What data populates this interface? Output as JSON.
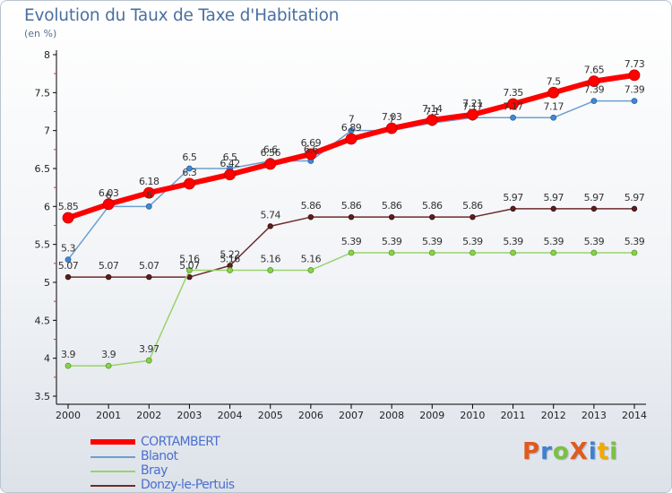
{
  "header": {
    "title": "Evolution du Taux de Taxe d'Habitation",
    "subtitle": "(en %)"
  },
  "logo": {
    "text": "ProXiti",
    "colors": [
      "#e05a1f",
      "#3f7fd0",
      "#7ac143",
      "#e05a1f",
      "#3f7fd0",
      "#f2a900",
      "#7ac143"
    ]
  },
  "chart_data": {
    "type": "line",
    "x": [
      "2000",
      "2001",
      "2002",
      "2003",
      "2004",
      "2005",
      "2006",
      "2007",
      "2008",
      "2009",
      "2010",
      "2011",
      "2012",
      "2013",
      "2014"
    ],
    "ylim": [
      3.5,
      8
    ],
    "yticks": [
      "3.5",
      "4",
      "4.5",
      "5",
      "5.5",
      "6",
      "6.5",
      "7",
      "7.5",
      "8"
    ],
    "grid": false,
    "legend_position": "bottom-left",
    "series": [
      {
        "name": "CORTAMBERT",
        "color": "#ff0000",
        "values": [
          5.85,
          6.03,
          6.18,
          6.3,
          6.42,
          6.56,
          6.69,
          6.89,
          7.03,
          7.14,
          7.21,
          7.35,
          7.5,
          7.65,
          7.73
        ],
        "labels": [
          "5.85",
          "6.03",
          "6.18",
          "6.3",
          "6.42",
          "6.56",
          "6.69",
          "6.89",
          "7.03",
          "7.14",
          "7.21",
          "7.35",
          "7.5",
          "7.65",
          "7.73"
        ]
      },
      {
        "name": "Blanot",
        "color": "#6c9fd0",
        "values": [
          5.3,
          6.0,
          6.0,
          6.5,
          6.5,
          6.6,
          6.6,
          7.0,
          7.0,
          7.1,
          7.17,
          7.17,
          7.17,
          7.39,
          7.39
        ],
        "labels": [
          "5.3",
          "6",
          "6",
          "6.5",
          "6.5",
          "6.6",
          "6.6",
          "7",
          "7",
          "7.1",
          "7.17",
          "7.17",
          "7.17",
          "7.39",
          "7.39"
        ]
      },
      {
        "name": "Bray",
        "color": "#99d36a",
        "values": [
          3.9,
          3.9,
          3.97,
          5.16,
          5.16,
          5.16,
          5.16,
          5.39,
          5.39,
          5.39,
          5.39,
          5.39,
          5.39,
          5.39,
          5.39
        ],
        "labels": [
          "3.9",
          "3.9",
          "3.97",
          "5.16",
          "5.16",
          "5.16",
          "5.16",
          "5.39",
          "5.39",
          "5.39",
          "5.39",
          "5.39",
          "5.39",
          "5.39",
          "5.39"
        ]
      },
      {
        "name": "Donzy-le-Pertuis",
        "color": "#6e2a2a",
        "values": [
          5.07,
          5.07,
          5.07,
          5.07,
          5.22,
          5.74,
          5.86,
          5.86,
          5.86,
          5.86,
          5.86,
          5.97,
          5.97,
          5.97,
          5.97
        ],
        "labels": [
          "5.07",
          "5.07",
          "5.07",
          "5.07",
          "5.22",
          "5.74",
          "5.86",
          "5.86",
          "5.86",
          "5.86",
          "5.86",
          "5.97",
          "5.97",
          "5.97",
          "5.97"
        ]
      }
    ]
  }
}
